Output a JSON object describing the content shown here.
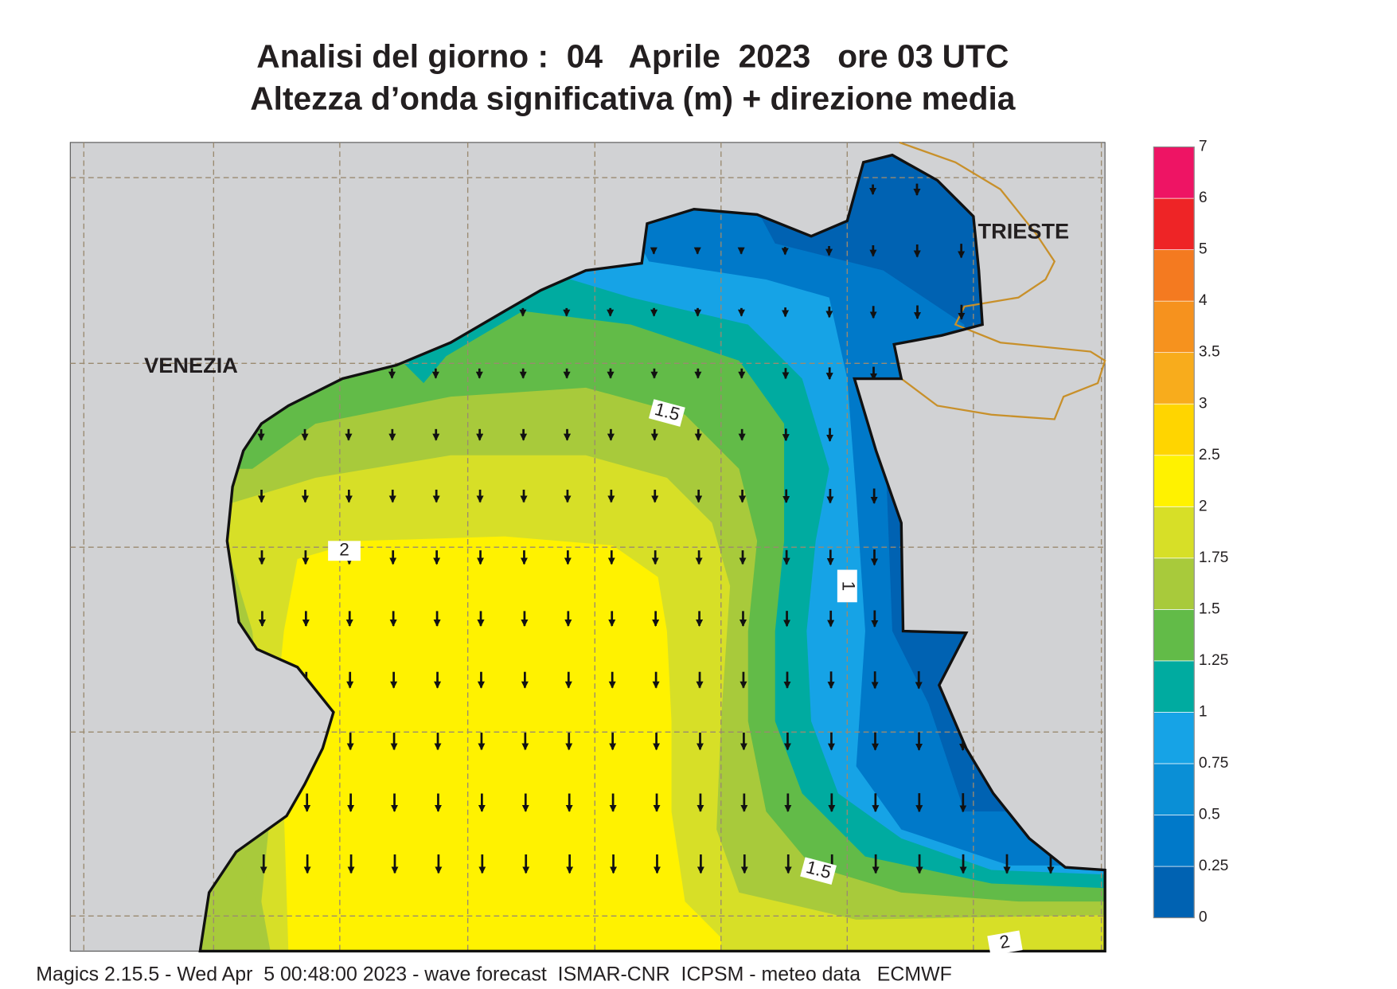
{
  "title": [
    "Analisi del giorno :  04   Aprile  2023   ore 03 UTC",
    "Altezza d’onda significativa (m) + direzione media"
  ],
  "places": [
    "VENEZIA",
    "TRIESTE"
  ],
  "contour_labels": [
    "1.5",
    "2",
    "1",
    "1.5",
    "2"
  ],
  "legend": {
    "levels": [
      0,
      0.25,
      0.5,
      0.75,
      1,
      1.25,
      1.5,
      1.75,
      2,
      2.5,
      3,
      3.5,
      4,
      5,
      6,
      7
    ],
    "colors": [
      "#0062b2",
      "#0079c9",
      "#0a8fd6",
      "#16a3e6",
      "#00aba0",
      "#62bb48",
      "#a8ca3b",
      "#d7df27",
      "#fff200",
      "#ffd500",
      "#f8ac1c",
      "#f6921e",
      "#f47a20",
      "#ee2426",
      "#ee1464"
    ]
  },
  "footer": "Magics 2.15.5 - Wed Apr  5 00:48:00 2023 - wave forecast  ISMAR-CNR  ICPSM - meteo data   ECMWF"
}
